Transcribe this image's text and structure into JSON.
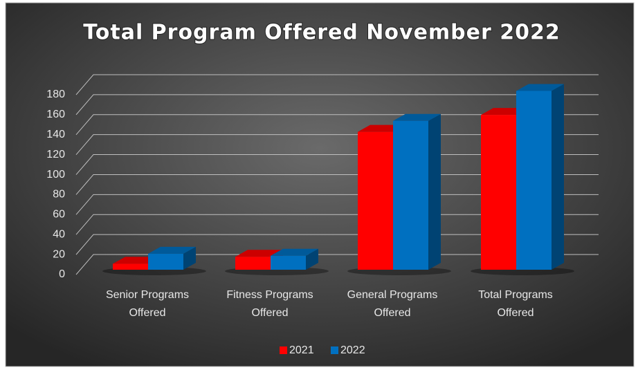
{
  "chart_data": {
    "type": "bar3d",
    "title": "Total Program Offered November 2022",
    "categories": [
      "Senior Programs Offered",
      "Fitness Programs Offered",
      "General Programs Offered",
      "Total Programs Offered"
    ],
    "series": [
      {
        "name": "2021",
        "color": "#ff0000",
        "values": [
          6,
          13,
          138,
          155
        ]
      },
      {
        "name": "2022",
        "color": "#0070c0",
        "values": [
          16,
          14,
          149,
          179
        ]
      }
    ],
    "ylim": [
      0,
      180
    ],
    "yticks": [
      0,
      20,
      40,
      60,
      80,
      100,
      120,
      140,
      160,
      180
    ],
    "grid": true,
    "legend": "bottom"
  }
}
